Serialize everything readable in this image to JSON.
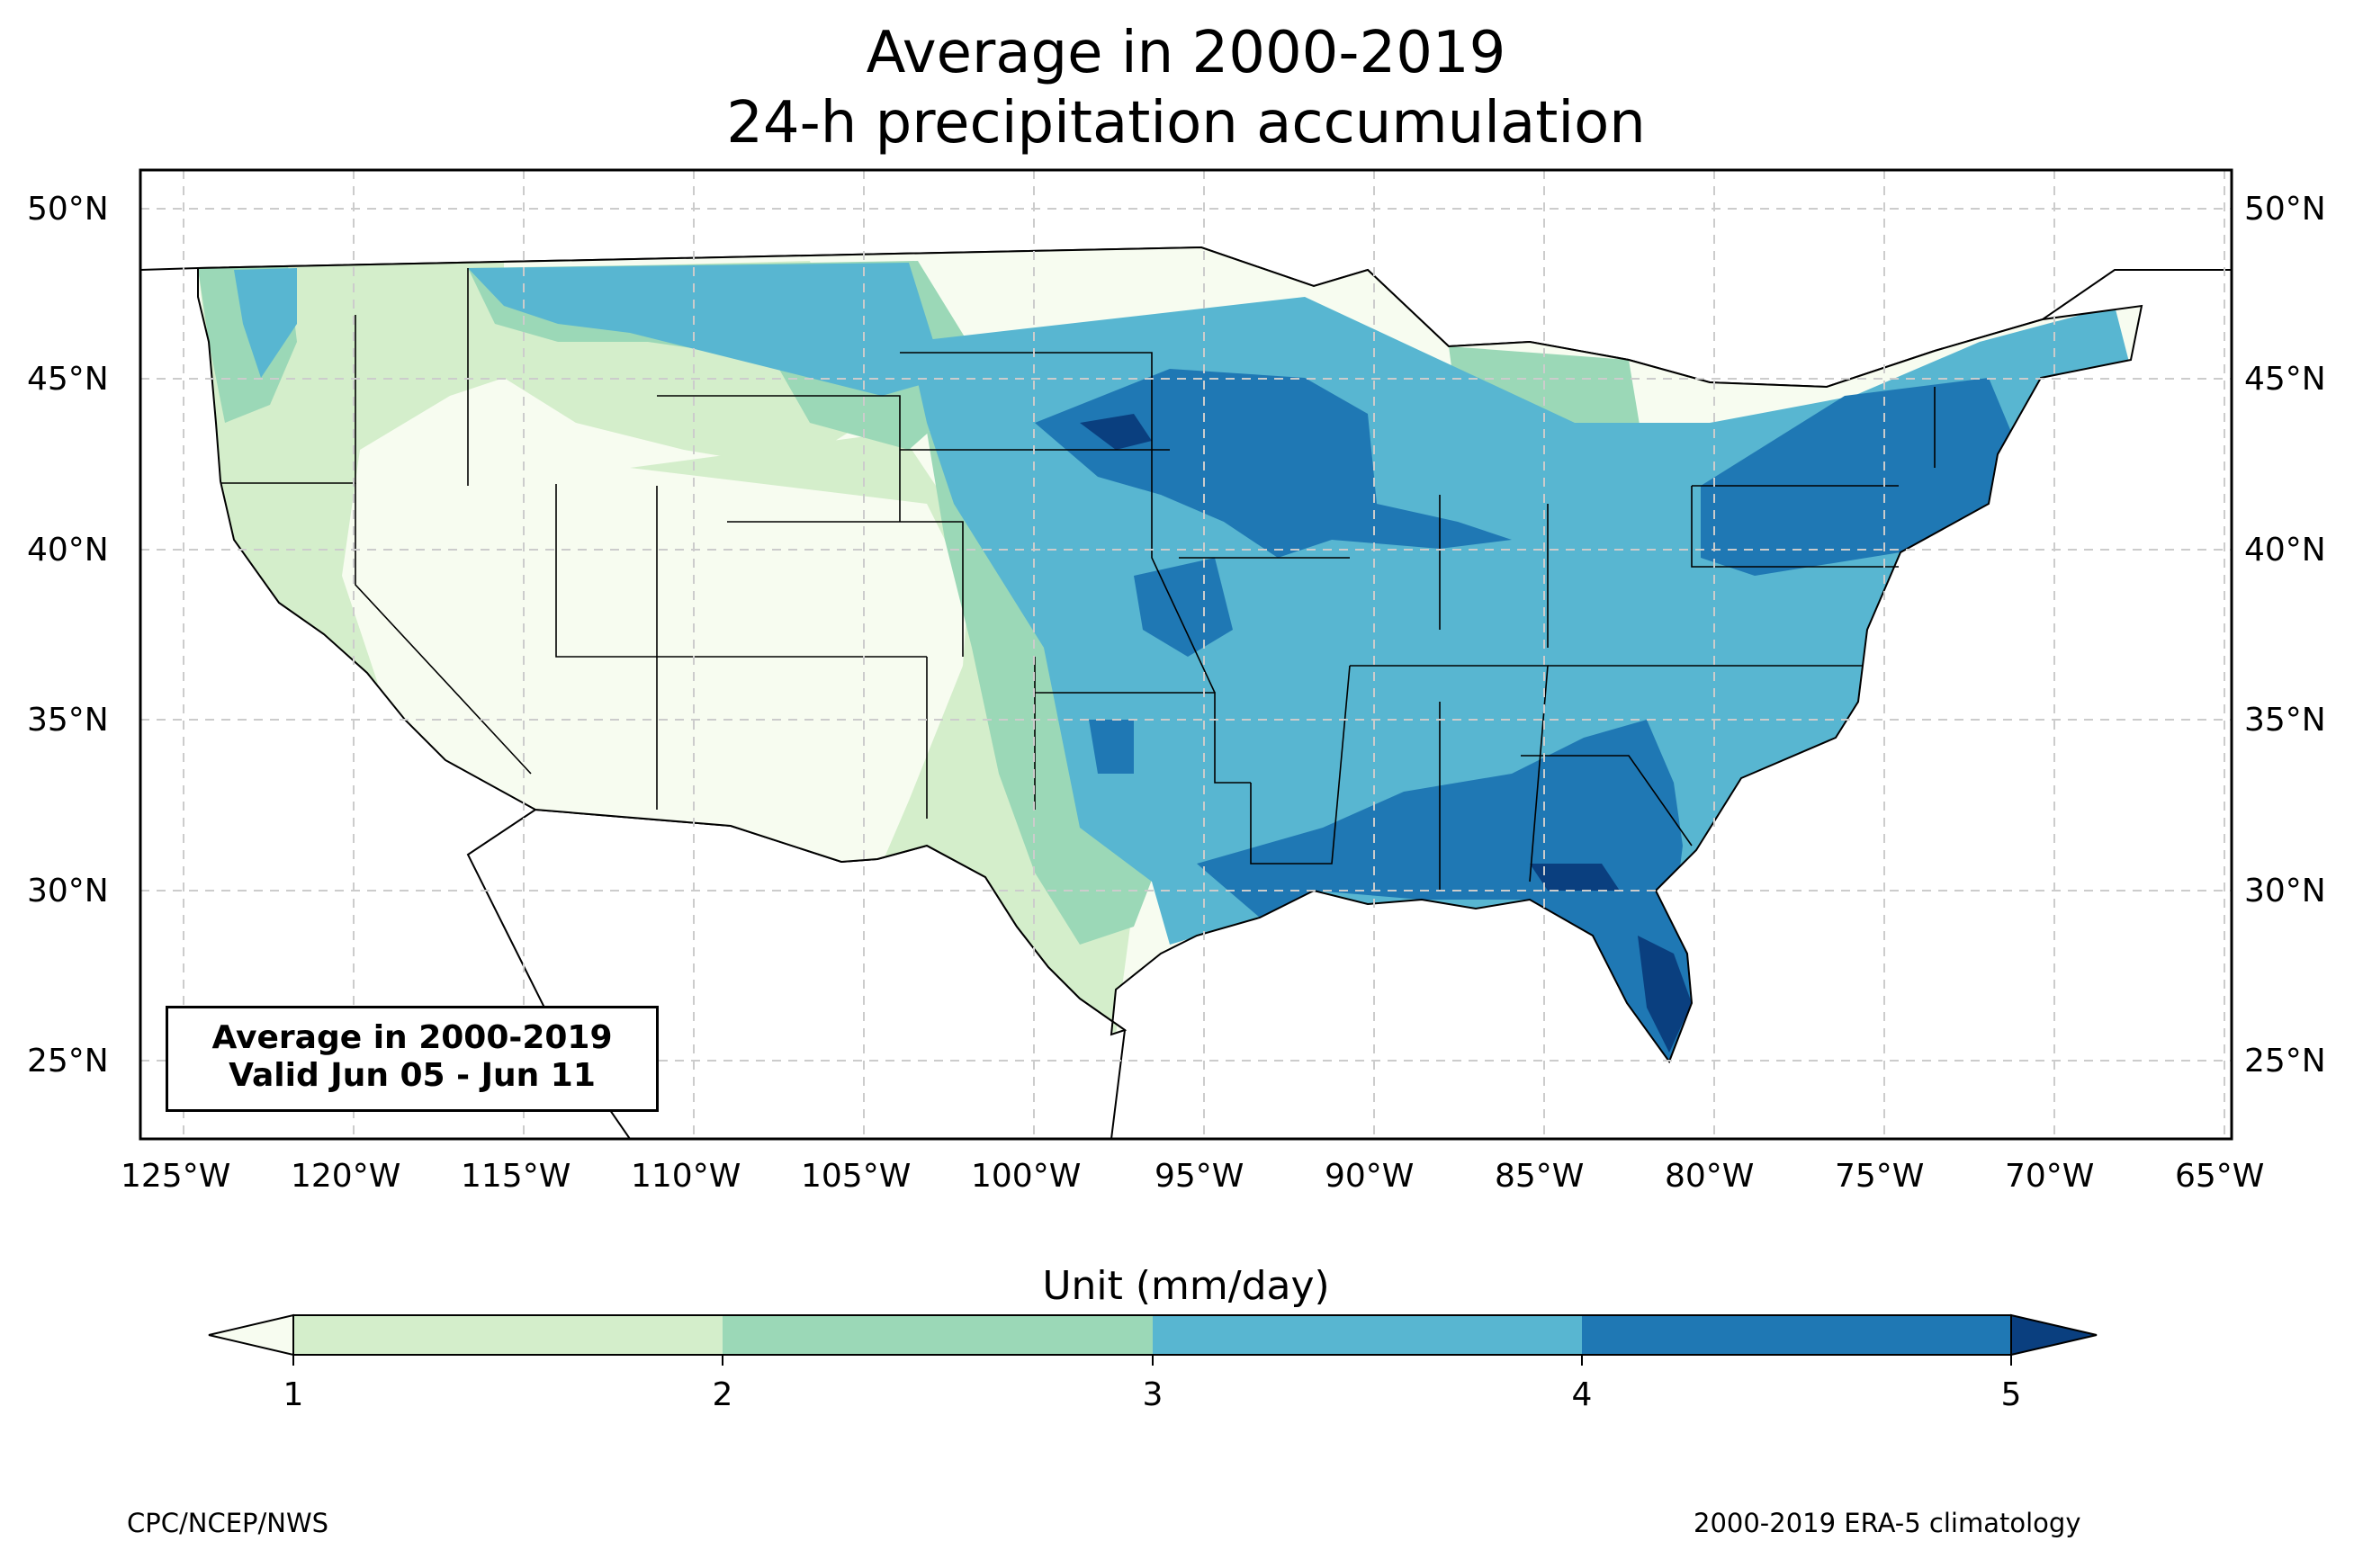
{
  "title": {
    "line1": "Average in 2000-2019",
    "line2": "24-h precipitation accumulation"
  },
  "map": {
    "projection": "PlateCarree",
    "extent_lon": [
      -126.3,
      -64.9
    ],
    "extent_lat": [
      22.8,
      51.2
    ],
    "lat_ticks": [
      "50°N",
      "45°N",
      "40°N",
      "35°N",
      "30°N",
      "25°N"
    ],
    "lon_ticks": [
      "125°W",
      "120°W",
      "115°W",
      "110°W",
      "105°W",
      "100°W",
      "95°W",
      "90°W",
      "85°W",
      "80°W",
      "75°W",
      "70°W",
      "65°W"
    ],
    "gridlines": "dashed",
    "colors": {
      "land_low": "#f7fcf0",
      "lt1": "#d4eecb",
      "c12": "#d4eecb",
      "c23": "#9bd8b7",
      "c34": "#58b6d1",
      "c45": "#1f78b4",
      "gt5": "#0a3f7f"
    }
  },
  "info_box": {
    "line1": "Average in 2000-2019",
    "line2": "Valid Jun 05 - Jun 11"
  },
  "colorbar": {
    "label": "Unit (mm/day)",
    "ticks": [
      "1",
      "2",
      "3",
      "4",
      "5"
    ],
    "colors": [
      "#f7fcf0",
      "#d4eecb",
      "#9bd8b7",
      "#58b6d1",
      "#1f78b4",
      "#0a3f7f"
    ]
  },
  "footer": {
    "left": "CPC/NCEP/NWS",
    "right": "2000-2019 ERA-5 climatology"
  }
}
